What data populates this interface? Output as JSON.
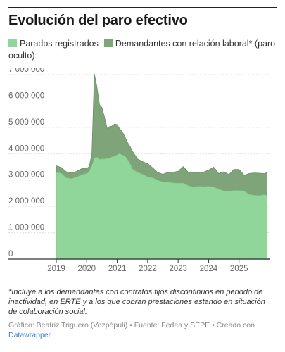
{
  "header": {
    "title": "Evolución del paro efectivo"
  },
  "legend": {
    "items": [
      {
        "label": "Parados registrados",
        "color": "#90d59a"
      },
      {
        "label": "Demandantes con relación laboral* (paro oculto)",
        "color": "#7fa47a"
      }
    ]
  },
  "footer": {
    "footnote": "*Incluye a los demandantes con contratos fijos discontinuos en periodo de inactividad, en ERTE y a los que cobran prestaciones estando en situación de colaboración social.",
    "credits_text": "Gráfico: Beatriz Triguero (Vozpópuli) • Fuente: Fedea y SEPE • Creado con ",
    "credits_link": "Datawrapper"
  },
  "chart_data": {
    "type": "area",
    "ylim": [
      0,
      7000000
    ],
    "yticks": [
      0,
      1000000,
      2000000,
      3000000,
      4000000,
      5000000,
      6000000,
      7000000
    ],
    "ytick_labels": [
      "0",
      "1 000 000",
      "2 000 000",
      "3 000 000",
      "4 000 000",
      "5 000 000",
      "6 000 000",
      "7 000 000"
    ],
    "xlim": [
      2019.0,
      2026.0
    ],
    "xticks": [
      2019,
      2020,
      2021,
      2022,
      2023,
      2024,
      2025
    ],
    "xtick_labels": [
      "2019",
      "2020",
      "2021",
      "2022",
      "2023",
      "2024",
      "2025"
    ],
    "grid": true,
    "stacked": true,
    "x": [
      2019.0,
      2019.17,
      2019.33,
      2019.5,
      2019.67,
      2019.83,
      2020.0,
      2020.08,
      2020.17,
      2020.25,
      2020.33,
      2020.42,
      2020.5,
      2020.58,
      2020.67,
      2020.75,
      2020.83,
      2020.92,
      2021.0,
      2021.08,
      2021.17,
      2021.25,
      2021.33,
      2021.42,
      2021.5,
      2021.67,
      2021.83,
      2022.0,
      2022.17,
      2022.33,
      2022.5,
      2022.67,
      2022.83,
      2023.0,
      2023.17,
      2023.33,
      2023.5,
      2023.67,
      2023.83,
      2024.0,
      2024.17,
      2024.33,
      2024.5,
      2024.67,
      2024.83,
      2025.0,
      2025.17,
      2025.33,
      2025.5,
      2025.67,
      2025.83,
      2025.92
    ],
    "series": [
      {
        "name": "Parados registrados",
        "color": "#90d59a",
        "values": [
          3290000,
          3250000,
          3080000,
          3050000,
          3110000,
          3200000,
          3250000,
          3310000,
          3550000,
          3830000,
          3860000,
          3780000,
          3800000,
          3800000,
          3810000,
          3830000,
          3880000,
          3900000,
          3960000,
          4000000,
          3950000,
          3920000,
          3790000,
          3620000,
          3420000,
          3290000,
          3220000,
          3120000,
          3080000,
          2990000,
          2920000,
          2920000,
          2890000,
          2880000,
          2880000,
          2790000,
          2730000,
          2760000,
          2750000,
          2760000,
          2730000,
          2650000,
          2590000,
          2570000,
          2600000,
          2600000,
          2580000,
          2450000,
          2420000,
          2410000,
          2440000,
          2420000
        ]
      },
      {
        "name": "Demandantes con relación laboral* (paro oculto)",
        "color": "#7fa47a",
        "values": [
          250000,
          220000,
          230000,
          220000,
          220000,
          230000,
          200000,
          190000,
          450000,
          3200000,
          2700000,
          2070000,
          1950000,
          1600000,
          1150000,
          1200000,
          1170000,
          1230000,
          1140000,
          950000,
          880000,
          730000,
          650000,
          660000,
          670000,
          510000,
          480000,
          500000,
          380000,
          300000,
          300000,
          380000,
          410000,
          450000,
          630000,
          510000,
          550000,
          530000,
          550000,
          620000,
          760000,
          600000,
          720000,
          640000,
          800000,
          800000,
          600000,
          800000,
          850000,
          850000,
          800000,
          870000
        ]
      }
    ]
  }
}
